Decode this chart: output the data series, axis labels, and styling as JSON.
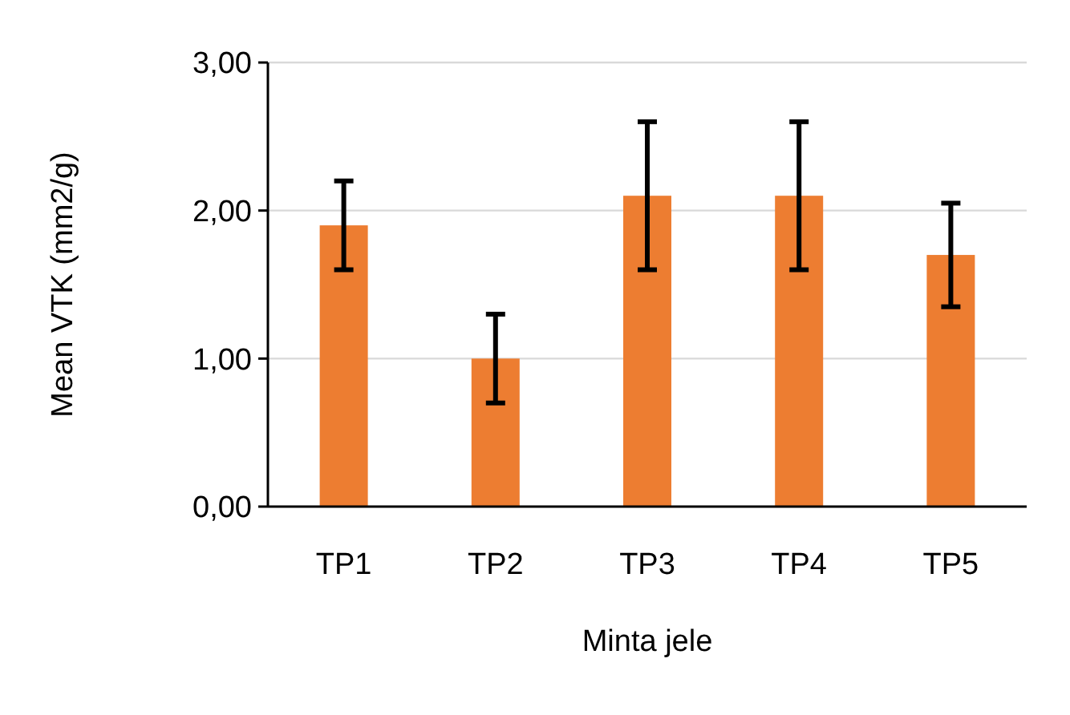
{
  "chart_data": {
    "type": "bar",
    "xlabel": "Minta jele",
    "ylabel": "Mean VTK (mm2/g)",
    "categories": [
      "TP1",
      "TP2",
      "TP3",
      "TP4",
      "TP5"
    ],
    "values": [
      1.9,
      1.0,
      2.1,
      2.1,
      1.7
    ],
    "errors": [
      [
        1.6,
        2.2
      ],
      [
        0.7,
        1.3
      ],
      [
        1.6,
        2.6
      ],
      [
        1.6,
        2.6
      ],
      [
        1.35,
        2.05
      ]
    ],
    "color": "#ed7d31",
    "ylim": [
      0,
      3
    ],
    "yticks": [
      {
        "value": 0,
        "label": "0,00"
      },
      {
        "value": 1,
        "label": "1,00"
      },
      {
        "value": 2,
        "label": "2,00"
      },
      {
        "value": 3,
        "label": "3,00"
      }
    ],
    "grid": "y"
  }
}
